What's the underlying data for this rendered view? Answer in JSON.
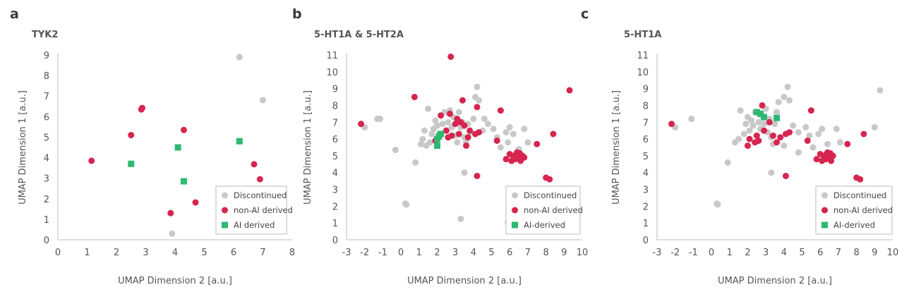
{
  "colors": {
    "discontinued": "#c8c8c8",
    "non_ai": "#d6254f",
    "ai": "#2eb872",
    "axis": "#bdbdbd",
    "legend_border": "#bbbbbb"
  },
  "panels": [
    {
      "letter": "a",
      "title": "TYK2",
      "xlabel": "UMAP Dimension 2 [a.u.]",
      "ylabel": "UMAP Dimension 1 [a.u.]",
      "legend": [
        "Discontinued",
        "non-AI derived",
        "AI derived"
      ]
    },
    {
      "letter": "b",
      "title": "5-HT1A & 5-HT2A",
      "xlabel": "UMAP Dimension 2 [a.u.]",
      "ylabel": "UMAP Dimension 1 [a.u.]",
      "legend": [
        "Discontinued",
        "non-AI derived",
        "AI-derived"
      ]
    },
    {
      "letter": "c",
      "title": "5-HT1A",
      "xlabel": "UMAP Dimension 2 [a.u.]",
      "ylabel": "UMAP Dimension 1 [a.u.]",
      "legend": [
        "Discontinued",
        "non-AI derived",
        "AI-derived"
      ]
    }
  ],
  "chart_data": [
    {
      "type": "scatter",
      "title": "TYK2",
      "xlabel": "UMAP Dimension 2 [a.u.]",
      "ylabel": "UMAP Dimension 1 [a.u.]",
      "xlim": [
        0,
        8
      ],
      "ylim": [
        0,
        9
      ],
      "xticks": [
        0,
        1,
        2,
        3,
        4,
        5,
        6,
        7,
        8
      ],
      "yticks": [
        0,
        1,
        2,
        3,
        4,
        5,
        6,
        7,
        8,
        9
      ],
      "legend_position": "bottom-right",
      "series": [
        {
          "name": "Discontinued",
          "marker": "circle",
          "points": [
            [
              6.2,
              8.9
            ],
            [
              7.0,
              6.8
            ],
            [
              3.9,
              0.3
            ]
          ]
        },
        {
          "name": "non-AI derived",
          "marker": "circle",
          "points": [
            [
              1.15,
              3.85
            ],
            [
              2.5,
              5.1
            ],
            [
              2.85,
              6.35
            ],
            [
              2.88,
              6.42
            ],
            [
              4.3,
              5.35
            ],
            [
              3.85,
              1.3
            ],
            [
              4.7,
              1.82
            ],
            [
              6.7,
              3.68
            ],
            [
              6.9,
              2.95
            ]
          ]
        },
        {
          "name": "AI derived",
          "marker": "square",
          "points": [
            [
              2.5,
              3.7
            ],
            [
              4.1,
              4.5
            ],
            [
              4.3,
              2.85
            ],
            [
              6.2,
              4.8
            ]
          ]
        }
      ]
    },
    {
      "type": "scatter",
      "title": "5-HT1A & 5-HT2A",
      "xlabel": "UMAP Dimension 2 [a.u.]",
      "ylabel": "UMAP Dimension 1 [a.u.]",
      "xlim": [
        -3,
        10
      ],
      "ylim": [
        0,
        11
      ],
      "xticks": [
        -3,
        -2,
        -1,
        0,
        1,
        2,
        3,
        4,
        5,
        6,
        7,
        8,
        9,
        10
      ],
      "yticks": [
        0,
        1,
        2,
        3,
        4,
        5,
        6,
        7,
        8,
        9,
        10,
        11
      ],
      "legend_position": "bottom-right",
      "series": [
        {
          "name": "Discontinued",
          "marker": "circle",
          "points": [
            [
              -2.0,
              6.7
            ],
            [
              -1.3,
              7.2
            ],
            [
              -1.15,
              7.2
            ],
            [
              -0.3,
              5.35
            ],
            [
              0.25,
              2.15
            ],
            [
              0.3,
              2.1
            ],
            [
              0.8,
              4.6
            ],
            [
              1.1,
              5.7
            ],
            [
              1.2,
              6.0
            ],
            [
              1.3,
              6.5
            ],
            [
              1.5,
              7.8
            ],
            [
              1.6,
              5.8
            ],
            [
              1.7,
              6.3
            ],
            [
              1.8,
              6.6
            ],
            [
              1.9,
              7.1
            ],
            [
              2.0,
              6.8
            ],
            [
              2.1,
              6.3
            ],
            [
              2.2,
              7.4
            ],
            [
              2.3,
              6.9
            ],
            [
              2.4,
              7.6
            ],
            [
              2.5,
              6.5
            ],
            [
              2.6,
              7.0
            ],
            [
              2.7,
              7.7
            ],
            [
              2.8,
              6.7
            ],
            [
              2.9,
              7.3
            ],
            [
              3.0,
              6.2
            ],
            [
              3.1,
              5.8
            ],
            [
              3.2,
              7.6
            ],
            [
              3.3,
              6.7
            ],
            [
              3.4,
              7.0
            ],
            [
              3.5,
              6.1
            ],
            [
              3.6,
              5.8
            ],
            [
              3.7,
              6.9
            ],
            [
              3.8,
              6.4
            ],
            [
              3.5,
              4.0
            ],
            [
              3.3,
              1.25
            ],
            [
              4.0,
              7.2
            ],
            [
              4.1,
              8.5
            ],
            [
              4.2,
              9.1
            ],
            [
              4.3,
              8.3
            ],
            [
              4.5,
              6.5
            ],
            [
              4.6,
              7.2
            ],
            [
              4.8,
              6.9
            ],
            [
              5.1,
              6.6
            ],
            [
              5.3,
              6.1
            ],
            [
              5.5,
              5.5
            ],
            [
              5.8,
              6.4
            ],
            [
              6.0,
              6.7
            ],
            [
              6.2,
              6.3
            ],
            [
              5.9,
              5.8
            ],
            [
              6.5,
              5.4
            ],
            [
              6.8,
              6.6
            ],
            [
              7.0,
              5.8
            ],
            [
              5.9,
              1.05
            ],
            [
              1.4,
              5.6
            ]
          ]
        },
        {
          "name": "non-AI derived",
          "marker": "circle",
          "points": [
            [
              -2.2,
              6.9
            ],
            [
              0.75,
              8.5
            ],
            [
              1.9,
              5.9
            ],
            [
              2.2,
              7.4
            ],
            [
              2.5,
              6.5
            ],
            [
              2.6,
              6.1
            ],
            [
              2.7,
              7.5
            ],
            [
              2.75,
              10.9
            ],
            [
              2.8,
              6.2
            ],
            [
              3.0,
              6.9
            ],
            [
              3.1,
              7.2
            ],
            [
              3.2,
              6.3
            ],
            [
              3.3,
              7.0
            ],
            [
              3.4,
              8.3
            ],
            [
              3.5,
              6.8
            ],
            [
              3.6,
              5.6
            ],
            [
              3.7,
              6.1
            ],
            [
              3.8,
              6.5
            ],
            [
              4.1,
              6.3
            ],
            [
              4.2,
              7.9
            ],
            [
              4.3,
              6.4
            ],
            [
              4.2,
              3.8
            ],
            [
              5.5,
              7.7
            ],
            [
              5.3,
              5.9
            ],
            [
              5.8,
              4.8
            ],
            [
              6.0,
              5.1
            ],
            [
              6.1,
              4.7
            ],
            [
              6.2,
              5.0
            ],
            [
              6.3,
              4.8
            ],
            [
              6.4,
              5.2
            ],
            [
              6.5,
              4.9
            ],
            [
              6.6,
              4.7
            ],
            [
              6.7,
              5.0
            ],
            [
              6.8,
              4.9
            ],
            [
              6.55,
              5.15
            ],
            [
              7.5,
              5.7
            ],
            [
              8.0,
              3.7
            ],
            [
              8.2,
              3.6
            ],
            [
              8.4,
              6.3
            ],
            [
              9.3,
              8.9
            ]
          ]
        },
        {
          "name": "AI-derived",
          "marker": "square",
          "points": [
            [
              2.0,
              5.6
            ],
            [
              2.0,
              6.0
            ],
            [
              2.1,
              6.15
            ],
            [
              2.2,
              6.3
            ]
          ]
        }
      ]
    },
    {
      "type": "scatter",
      "title": "5-HT1A",
      "xlabel": "UMAP Dimension 2 [a.u.]",
      "ylabel": "UMAP Dimension 1 [a.u.]",
      "xlim": [
        -3,
        10
      ],
      "ylim": [
        0,
        11
      ],
      "xticks": [
        -3,
        -2,
        -1,
        0,
        1,
        2,
        3,
        4,
        5,
        6,
        7,
        8,
        9,
        10
      ],
      "yticks": [
        0,
        1,
        2,
        3,
        4,
        5,
        6,
        7,
        8,
        9,
        10,
        11
      ],
      "legend_position": "bottom-right",
      "series": [
        {
          "name": "Discontinued",
          "marker": "circle",
          "points": [
            [
              -2.0,
              6.7
            ],
            [
              -1.1,
              7.2
            ],
            [
              0.3,
              2.15
            ],
            [
              0.35,
              2.1
            ],
            [
              0.9,
              4.6
            ],
            [
              1.3,
              5.8
            ],
            [
              1.5,
              6.0
            ],
            [
              1.6,
              7.7
            ],
            [
              1.8,
              6.3
            ],
            [
              1.9,
              6.9
            ],
            [
              2.0,
              7.3
            ],
            [
              2.1,
              6.5
            ],
            [
              2.2,
              7.1
            ],
            [
              2.3,
              6.8
            ],
            [
              2.4,
              7.6
            ],
            [
              2.5,
              6.2
            ],
            [
              2.6,
              7.0
            ],
            [
              2.7,
              6.6
            ],
            [
              2.8,
              7.4
            ],
            [
              2.9,
              6.9
            ],
            [
              3.0,
              7.8
            ],
            [
              3.1,
              6.4
            ],
            [
              3.2,
              7.2
            ],
            [
              3.3,
              6.1
            ],
            [
              3.4,
              5.7
            ],
            [
              3.5,
              6.9
            ],
            [
              3.6,
              7.6
            ],
            [
              3.3,
              4.0
            ],
            [
              3.7,
              8.2
            ],
            [
              4.0,
              8.5
            ],
            [
              4.2,
              9.1
            ],
            [
              4.3,
              8.3
            ],
            [
              4.5,
              6.8
            ],
            [
              4.8,
              6.4
            ],
            [
              5.2,
              6.7
            ],
            [
              5.4,
              6.2
            ],
            [
              5.6,
              5.5
            ],
            [
              5.9,
              6.3
            ],
            [
              6.1,
              6.6
            ],
            [
              6.4,
              5.7
            ],
            [
              6.9,
              6.6
            ],
            [
              7.1,
              5.8
            ],
            [
              9.0,
              6.7
            ],
            [
              9.3,
              8.9
            ],
            [
              4.0,
              5.6
            ],
            [
              4.8,
              5.2
            ]
          ]
        },
        {
          "name": "non-AI derived",
          "marker": "circle",
          "points": [
            [
              -2.2,
              6.9
            ],
            [
              2.0,
              5.6
            ],
            [
              2.1,
              6.0
            ],
            [
              2.4,
              5.8
            ],
            [
              2.5,
              6.2
            ],
            [
              2.6,
              5.9
            ],
            [
              2.8,
              8.0
            ],
            [
              2.9,
              6.5
            ],
            [
              3.2,
              7.0
            ],
            [
              3.4,
              6.2
            ],
            [
              3.6,
              5.8
            ],
            [
              3.8,
              6.1
            ],
            [
              4.1,
              6.3
            ],
            [
              4.3,
              6.4
            ],
            [
              4.1,
              3.8
            ],
            [
              5.5,
              7.7
            ],
            [
              5.3,
              5.9
            ],
            [
              5.8,
              4.8
            ],
            [
              6.0,
              5.1
            ],
            [
              6.1,
              4.7
            ],
            [
              6.2,
              5.0
            ],
            [
              6.3,
              4.8
            ],
            [
              6.4,
              5.2
            ],
            [
              6.5,
              4.9
            ],
            [
              6.6,
              4.7
            ],
            [
              6.7,
              5.0
            ],
            [
              6.55,
              5.15
            ],
            [
              7.5,
              5.7
            ],
            [
              8.0,
              3.7
            ],
            [
              8.2,
              3.6
            ],
            [
              8.4,
              6.3
            ]
          ]
        },
        {
          "name": "AI-derived",
          "marker": "square",
          "points": [
            [
              2.5,
              7.6
            ],
            [
              2.7,
              7.5
            ],
            [
              2.9,
              7.3
            ],
            [
              3.6,
              7.25
            ]
          ]
        }
      ]
    }
  ]
}
